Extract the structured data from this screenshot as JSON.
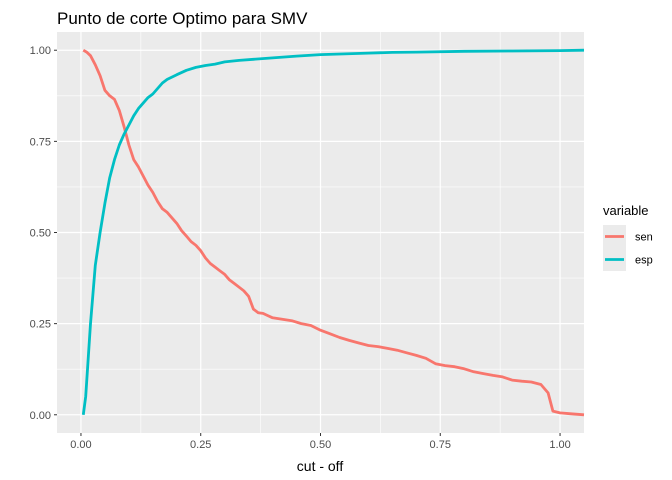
{
  "chart_data": {
    "type": "line",
    "title": "Punto de corte Optimo para SMV",
    "xlabel": "cut - off",
    "ylabel": "",
    "xlim": [
      -0.05,
      1.05
    ],
    "ylim": [
      -0.05,
      1.05
    ],
    "x_ticks": [
      0.0,
      0.25,
      0.5,
      0.75,
      1.0
    ],
    "x_tick_labels": [
      "0.00",
      "0.25",
      "0.50",
      "0.75",
      "1.00"
    ],
    "y_ticks": [
      0.0,
      0.25,
      0.5,
      0.75,
      1.0
    ],
    "y_tick_labels": [
      "0.00",
      "0.25",
      "0.50",
      "0.75",
      "1.00"
    ],
    "grid": true,
    "legend": {
      "title": "variable",
      "placement": "right"
    },
    "series": [
      {
        "name": "sen",
        "color": "#F8766D",
        "points": [
          [
            0.005,
            1.0
          ],
          [
            0.012,
            0.995
          ],
          [
            0.02,
            0.985
          ],
          [
            0.03,
            0.96
          ],
          [
            0.04,
            0.93
          ],
          [
            0.05,
            0.89
          ],
          [
            0.06,
            0.875
          ],
          [
            0.07,
            0.865
          ],
          [
            0.08,
            0.835
          ],
          [
            0.09,
            0.79
          ],
          [
            0.1,
            0.74
          ],
          [
            0.11,
            0.7
          ],
          [
            0.12,
            0.68
          ],
          [
            0.13,
            0.655
          ],
          [
            0.14,
            0.63
          ],
          [
            0.15,
            0.61
          ],
          [
            0.16,
            0.585
          ],
          [
            0.17,
            0.565
          ],
          [
            0.18,
            0.555
          ],
          [
            0.19,
            0.54
          ],
          [
            0.2,
            0.525
          ],
          [
            0.21,
            0.505
          ],
          [
            0.22,
            0.49
          ],
          [
            0.23,
            0.475
          ],
          [
            0.24,
            0.465
          ],
          [
            0.25,
            0.45
          ],
          [
            0.26,
            0.43
          ],
          [
            0.27,
            0.415
          ],
          [
            0.28,
            0.405
          ],
          [
            0.29,
            0.395
          ],
          [
            0.3,
            0.385
          ],
          [
            0.31,
            0.37
          ],
          [
            0.32,
            0.36
          ],
          [
            0.33,
            0.35
          ],
          [
            0.34,
            0.34
          ],
          [
            0.35,
            0.325
          ],
          [
            0.36,
            0.29
          ],
          [
            0.37,
            0.28
          ],
          [
            0.38,
            0.278
          ],
          [
            0.39,
            0.272
          ],
          [
            0.4,
            0.266
          ],
          [
            0.42,
            0.262
          ],
          [
            0.44,
            0.258
          ],
          [
            0.46,
            0.25
          ],
          [
            0.48,
            0.245
          ],
          [
            0.5,
            0.232
          ],
          [
            0.52,
            0.222
          ],
          [
            0.54,
            0.212
          ],
          [
            0.56,
            0.204
          ],
          [
            0.58,
            0.197
          ],
          [
            0.6,
            0.19
          ],
          [
            0.62,
            0.187
          ],
          [
            0.64,
            0.182
          ],
          [
            0.66,
            0.177
          ],
          [
            0.68,
            0.17
          ],
          [
            0.7,
            0.163
          ],
          [
            0.72,
            0.155
          ],
          [
            0.74,
            0.14
          ],
          [
            0.76,
            0.135
          ],
          [
            0.78,
            0.132
          ],
          [
            0.8,
            0.126
          ],
          [
            0.82,
            0.118
          ],
          [
            0.84,
            0.113
          ],
          [
            0.86,
            0.108
          ],
          [
            0.88,
            0.104
          ],
          [
            0.9,
            0.095
          ],
          [
            0.92,
            0.092
          ],
          [
            0.94,
            0.09
          ],
          [
            0.96,
            0.083
          ],
          [
            0.975,
            0.06
          ],
          [
            0.985,
            0.01
          ],
          [
            1.0,
            0.005
          ],
          [
            1.02,
            0.003
          ],
          [
            1.05,
            0.0
          ]
        ]
      },
      {
        "name": "esp",
        "color": "#00BFC4",
        "points": [
          [
            0.005,
            0.0
          ],
          [
            0.01,
            0.05
          ],
          [
            0.015,
            0.15
          ],
          [
            0.02,
            0.25
          ],
          [
            0.025,
            0.33
          ],
          [
            0.03,
            0.41
          ],
          [
            0.04,
            0.5
          ],
          [
            0.05,
            0.58
          ],
          [
            0.06,
            0.65
          ],
          [
            0.07,
            0.7
          ],
          [
            0.08,
            0.74
          ],
          [
            0.09,
            0.77
          ],
          [
            0.1,
            0.795
          ],
          [
            0.11,
            0.82
          ],
          [
            0.12,
            0.84
          ],
          [
            0.13,
            0.855
          ],
          [
            0.14,
            0.87
          ],
          [
            0.15,
            0.88
          ],
          [
            0.16,
            0.895
          ],
          [
            0.17,
            0.91
          ],
          [
            0.18,
            0.92
          ],
          [
            0.2,
            0.933
          ],
          [
            0.22,
            0.945
          ],
          [
            0.24,
            0.953
          ],
          [
            0.26,
            0.958
          ],
          [
            0.28,
            0.962
          ],
          [
            0.3,
            0.968
          ],
          [
            0.33,
            0.972
          ],
          [
            0.36,
            0.975
          ],
          [
            0.4,
            0.979
          ],
          [
            0.45,
            0.984
          ],
          [
            0.5,
            0.988
          ],
          [
            0.55,
            0.99
          ],
          [
            0.6,
            0.992
          ],
          [
            0.65,
            0.994
          ],
          [
            0.7,
            0.995
          ],
          [
            0.8,
            0.997
          ],
          [
            0.9,
            0.998
          ],
          [
            1.0,
            0.999
          ],
          [
            1.05,
            1.0
          ]
        ]
      }
    ]
  }
}
